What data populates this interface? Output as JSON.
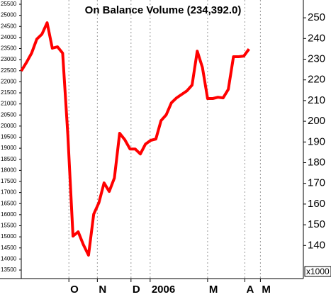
{
  "chart_data": {
    "type": "line",
    "title": "On Balance Volume (234,392.0)",
    "unit_label": "x1000",
    "xlim": [
      0,
      54.5
    ],
    "xticks": [
      {
        "value": 9.2,
        "label": "O"
      },
      {
        "value": 14.7,
        "label": "N"
      },
      {
        "value": 21.2,
        "label": "D"
      },
      {
        "value": 24.9,
        "label": "2006"
      },
      {
        "value": 36,
        "label": "M"
      },
      {
        "value": 43.2,
        "label": "A"
      },
      {
        "value": 46.2,
        "label": "M"
      }
    ],
    "ylim": [
      13116,
      25692
    ],
    "yticks": [
      13500,
      14000,
      14500,
      15000,
      15500,
      16000,
      16500,
      17000,
      17500,
      18000,
      18500,
      19000,
      19500,
      20000,
      20500,
      21000,
      21500,
      22000,
      22500,
      23000,
      23500,
      24000,
      24500,
      25000,
      25500
    ],
    "y2lim": [
      124,
      258.6
    ],
    "y2ticks": [
      140,
      150,
      160,
      170,
      180,
      190,
      200,
      210,
      220,
      230,
      240,
      250
    ],
    "grid": true,
    "series": [
      {
        "color": "#ff0000",
        "axis": "y2",
        "values": [
          224.3,
          228.4,
          232.9,
          239.7,
          242.1,
          247.6,
          235.3,
          236.0,
          232.9,
          193.5,
          144.5,
          146.6,
          140.4,
          135.3,
          155.1,
          160.6,
          170.2,
          166.1,
          172.6,
          194.2,
          191.1,
          186.6,
          186.6,
          184.2,
          189.0,
          190.8,
          191.4,
          200.3,
          203.1,
          208.9,
          211.3,
          213.0,
          214.7,
          217.5,
          233.9,
          226.0,
          211.0,
          211.0,
          211.6,
          211.3,
          215.4,
          231.2,
          231.2,
          231.5,
          234.9
        ]
      }
    ]
  }
}
